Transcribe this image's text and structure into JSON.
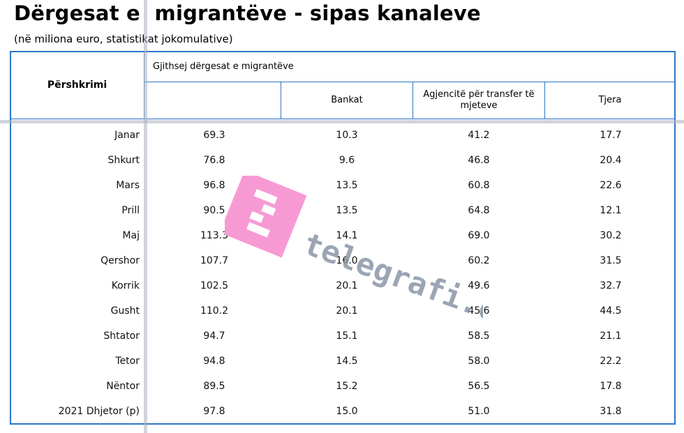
{
  "title": "Dërgesat e  migrantëve - sipas kanaleve",
  "subtitle": "(në miliona euro, statistikat jokomulative)",
  "table": {
    "header": {
      "description": "Përshkrimi",
      "total": "Gjithsej dërgesat e migrantëve",
      "banks": "Bankat",
      "agencies": "Agjencitë për transfer të mjeteve",
      "other": "Tjera"
    },
    "rows": [
      {
        "label": "Janar",
        "total": "69.3",
        "banks": "10.3",
        "agencies": "41.2",
        "other": "17.7"
      },
      {
        "label": "Shkurt",
        "total": "76.8",
        "banks": "9.6",
        "agencies": "46.8",
        "other": "20.4"
      },
      {
        "label": "Mars",
        "total": "96.8",
        "banks": "13.5",
        "agencies": "60.8",
        "other": "22.6"
      },
      {
        "label": "Prill",
        "total": "90.5",
        "banks": "13.5",
        "agencies": "64.8",
        "other": "12.1"
      },
      {
        "label": "Maj",
        "total": "113.3",
        "banks": "14.1",
        "agencies": "69.0",
        "other": "30.2"
      },
      {
        "label": "Qershor",
        "total": "107.7",
        "banks": "16.0",
        "agencies": "60.2",
        "other": "31.5"
      },
      {
        "label": "Korrik",
        "total": "102.5",
        "banks": "20.1",
        "agencies": "49.6",
        "other": "32.7"
      },
      {
        "label": "Gusht",
        "total": "110.2",
        "banks": "20.1",
        "agencies": "45.6",
        "other": "44.5"
      },
      {
        "label": "Shtator",
        "total": "94.7",
        "banks": "15.1",
        "agencies": "58.5",
        "other": "21.1"
      },
      {
        "label": "Tetor",
        "total": "94.8",
        "banks": "14.5",
        "agencies": "58.0",
        "other": "22.2"
      },
      {
        "label": "Nëntor",
        "total": "89.5",
        "banks": "15.2",
        "agencies": "56.5",
        "other": "17.8"
      },
      {
        "label": "2021 Dhjetor (p)",
        "total": "97.8",
        "banks": "15.0",
        "agencies": "51.0",
        "other": "31.8"
      }
    ]
  },
  "watermark": {
    "text": "telegrafi.com",
    "logo_color": "#f79ad4",
    "text_color": "#8a95a6"
  },
  "colors": {
    "border": "#2e75c8"
  }
}
